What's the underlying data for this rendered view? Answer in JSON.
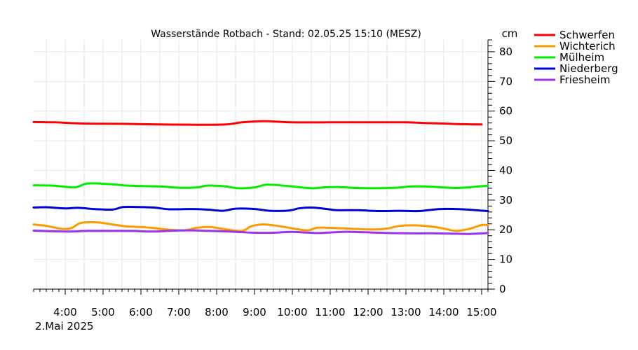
{
  "chart_data": {
    "type": "line",
    "title": "Wasserstände Rotbach - Stand: 02.05.25 15:10 (MESZ)",
    "ylabel": "cm",
    "date_label": "2.Mai 2025",
    "ylim": [
      0,
      84
    ],
    "xlim": [
      "03:10",
      "15:10"
    ],
    "grid": true,
    "legend_position": "right",
    "y_ticks": [
      "0",
      "10",
      "20",
      "30",
      "40",
      "50",
      "60",
      "70",
      "80"
    ],
    "x_ticks": [
      "4:00",
      "5:00",
      "6:00",
      "7:00",
      "8:00",
      "9:00",
      "10:00",
      "11:00",
      "12:00",
      "13:00",
      "14:00",
      "15:00"
    ],
    "series": [
      {
        "name": "Schwerfen",
        "color": "#ff0000",
        "points": [
          [
            "03:10",
            56.3
          ],
          [
            "03:45",
            56.2
          ],
          [
            "04:30",
            55.8
          ],
          [
            "05:30",
            55.7
          ],
          [
            "06:30",
            55.5
          ],
          [
            "07:30",
            55.4
          ],
          [
            "08:15",
            55.5
          ],
          [
            "08:40",
            56.2
          ],
          [
            "09:15",
            56.6
          ],
          [
            "10:00",
            56.2
          ],
          [
            "11:00",
            56.2
          ],
          [
            "12:00",
            56.2
          ],
          [
            "13:00",
            56.2
          ],
          [
            "13:30",
            56.0
          ],
          [
            "14:00",
            55.8
          ],
          [
            "14:30",
            55.6
          ],
          [
            "15:00",
            55.5
          ]
        ]
      },
      {
        "name": "Wichterich",
        "color": "#ff9900",
        "points": [
          [
            "03:10",
            21.8
          ],
          [
            "03:30",
            21.3
          ],
          [
            "03:55",
            20.3
          ],
          [
            "04:10",
            20.6
          ],
          [
            "04:25",
            22.3
          ],
          [
            "04:50",
            22.5
          ],
          [
            "05:15",
            21.8
          ],
          [
            "05:35",
            21.2
          ],
          [
            "06:00",
            20.9
          ],
          [
            "06:20",
            20.6
          ],
          [
            "06:45",
            20.0
          ],
          [
            "07:05",
            19.8
          ],
          [
            "07:15",
            20.0
          ],
          [
            "07:30",
            20.7
          ],
          [
            "07:50",
            20.9
          ],
          [
            "08:10",
            20.3
          ],
          [
            "08:40",
            19.6
          ],
          [
            "08:55",
            21.2
          ],
          [
            "09:15",
            21.8
          ],
          [
            "09:40",
            21.2
          ],
          [
            "10:05",
            20.3
          ],
          [
            "10:25",
            19.8
          ],
          [
            "10:40",
            20.7
          ],
          [
            "11:10",
            20.6
          ],
          [
            "11:40",
            20.3
          ],
          [
            "12:10",
            20.1
          ],
          [
            "12:30",
            20.4
          ],
          [
            "12:50",
            21.3
          ],
          [
            "13:10",
            21.5
          ],
          [
            "13:40",
            21.1
          ],
          [
            "14:00",
            20.4
          ],
          [
            "14:20",
            19.6
          ],
          [
            "14:40",
            20.3
          ],
          [
            "15:00",
            21.6
          ],
          [
            "15:10",
            21.6
          ]
        ]
      },
      {
        "name": "Mülheim",
        "color": "#00ee00",
        "points": [
          [
            "03:10",
            35.0
          ],
          [
            "03:40",
            34.9
          ],
          [
            "04:15",
            34.3
          ],
          [
            "04:35",
            35.6
          ],
          [
            "05:10",
            35.4
          ],
          [
            "05:40",
            34.9
          ],
          [
            "06:30",
            34.6
          ],
          [
            "07:00",
            34.2
          ],
          [
            "07:30",
            34.3
          ],
          [
            "07:45",
            34.9
          ],
          [
            "08:10",
            34.7
          ],
          [
            "08:35",
            34.0
          ],
          [
            "09:00",
            34.3
          ],
          [
            "09:20",
            35.2
          ],
          [
            "09:50",
            34.8
          ],
          [
            "10:30",
            34.0
          ],
          [
            "10:50",
            34.3
          ],
          [
            "11:15",
            34.4
          ],
          [
            "11:40",
            34.1
          ],
          [
            "12:10",
            34.0
          ],
          [
            "12:45",
            34.2
          ],
          [
            "13:10",
            34.6
          ],
          [
            "13:40",
            34.5
          ],
          [
            "14:20",
            34.1
          ],
          [
            "14:50",
            34.5
          ],
          [
            "15:10",
            34.9
          ]
        ]
      },
      {
        "name": "Niederberg",
        "color": "#0000dd",
        "points": [
          [
            "03:10",
            27.5
          ],
          [
            "03:30",
            27.6
          ],
          [
            "04:00",
            27.2
          ],
          [
            "04:20",
            27.4
          ],
          [
            "04:45",
            27.0
          ],
          [
            "05:15",
            26.8
          ],
          [
            "05:30",
            27.6
          ],
          [
            "05:50",
            27.7
          ],
          [
            "06:20",
            27.5
          ],
          [
            "06:45",
            26.9
          ],
          [
            "07:20",
            27.0
          ],
          [
            "07:45",
            26.8
          ],
          [
            "08:10",
            26.4
          ],
          [
            "08:30",
            27.1
          ],
          [
            "09:00",
            27.0
          ],
          [
            "09:25",
            26.4
          ],
          [
            "09:55",
            26.5
          ],
          [
            "10:10",
            27.2
          ],
          [
            "10:30",
            27.5
          ],
          [
            "10:55",
            27.0
          ],
          [
            "11:10",
            26.6
          ],
          [
            "11:45",
            26.6
          ],
          [
            "12:15",
            26.3
          ],
          [
            "12:50",
            26.4
          ],
          [
            "13:20",
            26.3
          ],
          [
            "13:55",
            27.0
          ],
          [
            "14:30",
            26.9
          ],
          [
            "14:50",
            26.6
          ],
          [
            "15:10",
            26.3
          ]
        ]
      },
      {
        "name": "Friesheim",
        "color": "#9933ee",
        "points": [
          [
            "03:10",
            19.7
          ],
          [
            "03:40",
            19.5
          ],
          [
            "04:10",
            19.4
          ],
          [
            "04:35",
            19.6
          ],
          [
            "05:10",
            19.6
          ],
          [
            "05:45",
            19.6
          ],
          [
            "06:20",
            19.4
          ],
          [
            "06:50",
            19.7
          ],
          [
            "07:20",
            19.8
          ],
          [
            "07:50",
            19.6
          ],
          [
            "08:20",
            19.4
          ],
          [
            "09:00",
            19.0
          ],
          [
            "09:30",
            19.0
          ],
          [
            "10:00",
            19.3
          ],
          [
            "10:40",
            18.9
          ],
          [
            "11:20",
            19.3
          ],
          [
            "11:50",
            19.2
          ],
          [
            "12:30",
            18.9
          ],
          [
            "13:00",
            18.8
          ],
          [
            "13:40",
            18.8
          ],
          [
            "14:10",
            18.7
          ],
          [
            "14:40",
            18.6
          ],
          [
            "15:10",
            18.9
          ]
        ]
      }
    ]
  }
}
